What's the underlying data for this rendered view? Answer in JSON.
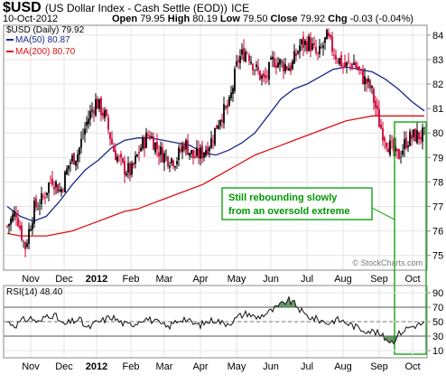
{
  "header": {
    "symbol": "$USD",
    "name": "(US Dollar Index - Cash Settle (EOD))",
    "exchange": "ICE",
    "date": "10-Oct-2012",
    "open_label": "Open",
    "open": "79.95",
    "high_label": "High",
    "high": "80.19",
    "low_label": "Low",
    "low": "79.50",
    "close_label": "Close",
    "close": "79.92",
    "chg_label": "Chg",
    "chg": "-0.03 (-0.04%)",
    "watermark": "© StockCharts.com"
  },
  "colors": {
    "price_up": "#000000",
    "price_down": "#cc0033",
    "ma50": "#1a2a8a",
    "ma200": "#dd1111",
    "annotation_border": "#22aa22",
    "annotation_text": "#009900",
    "rsi_fill": "#3a7a3a",
    "grid": "#e4e4e4"
  },
  "chart_data": [
    {
      "type": "candlestick",
      "title": "$USD (Daily) 79.92",
      "legend": [
        {
          "name": "MA(50) 80.87",
          "color": "#1a2a8a"
        },
        {
          "name": "MA(200) 80.70",
          "color": "#dd1111"
        }
      ],
      "legend_placement": "top-left",
      "x_tick_labels": [
        "Nov",
        "Dec",
        "2012",
        "Feb",
        "Mar",
        "Apr",
        "May",
        "Jun",
        "Jul",
        "Aug",
        "Sep",
        "Oct"
      ],
      "y_ticks": [
        75,
        76,
        77,
        78,
        79,
        80,
        81,
        82,
        83,
        84
      ],
      "ylim": [
        74.4,
        84.4
      ],
      "grid": true,
      "series": [
        {
          "name": "MA(50) 80.87",
          "values": [
            77.0,
            76.6,
            76.4,
            76.6,
            77.2,
            77.9,
            78.5,
            78.9,
            79.4,
            79.7,
            79.8,
            79.8,
            79.7,
            79.6,
            79.5,
            79.2,
            79.1,
            79.3,
            79.6,
            80.0,
            80.7,
            81.4,
            81.8,
            82.0,
            82.3,
            82.6,
            82.7,
            82.6,
            82.5,
            82.2,
            81.8,
            81.3,
            80.9
          ]
        },
        {
          "name": "MA(200) 80.70",
          "values": [
            75.9,
            75.8,
            75.8,
            75.8,
            75.9,
            76.0,
            76.2,
            76.4,
            76.6,
            76.8,
            76.9,
            77.1,
            77.3,
            77.5,
            77.7,
            77.9,
            78.2,
            78.5,
            78.8,
            79.1,
            79.3,
            79.5,
            79.7,
            79.9,
            80.1,
            80.3,
            80.5,
            80.6,
            80.7,
            80.7,
            80.7,
            80.7,
            80.7
          ]
        }
      ],
      "close_path": [
        76.2,
        76.8,
        75.3,
        76.9,
        77.3,
        78.2,
        77.6,
        78.8,
        79.2,
        80.5,
        81.3,
        80.7,
        79.3,
        78.6,
        78.4,
        79.4,
        80.0,
        79.3,
        79.0,
        78.9,
        79.6,
        79.0,
        79.2,
        79.7,
        80.7,
        81.1,
        83.0,
        83.4,
        82.6,
        82.1,
        83.0,
        82.8,
        82.7,
        83.6,
        83.7,
        83.1,
        83.9,
        83.2,
        82.7,
        82.9,
        82.3,
        81.8,
        80.3,
        79.5,
        79.0,
        79.7,
        79.9,
        79.9
      ],
      "annotations": [
        {
          "text_lines": [
            "Still rebounding slowly",
            "from an oversold extreme"
          ]
        }
      ]
    },
    {
      "type": "line",
      "title": "RSI(14) 48.40",
      "y_ticks": [
        10,
        30,
        50,
        70,
        90
      ],
      "ylim": [
        0,
        100
      ],
      "reference_lines": [
        30,
        70
      ],
      "midline": 50,
      "x_tick_labels": [
        "Nov",
        "Dec",
        "2012",
        "Feb",
        "Mar",
        "Apr",
        "May",
        "Jun",
        "Jul",
        "Aug",
        "Sep",
        "Oct"
      ],
      "values": [
        50,
        45,
        52,
        55,
        48,
        60,
        58,
        45,
        50,
        53,
        40,
        48,
        52,
        57,
        50,
        45,
        48,
        55,
        52,
        47,
        42,
        50,
        55,
        48,
        45,
        50,
        53,
        47,
        50,
        58,
        62,
        55,
        60,
        65,
        72,
        80,
        73,
        60,
        55,
        52,
        48,
        53,
        50,
        45,
        40,
        38,
        35,
        28,
        22,
        35,
        42,
        45,
        48
      ]
    }
  ]
}
